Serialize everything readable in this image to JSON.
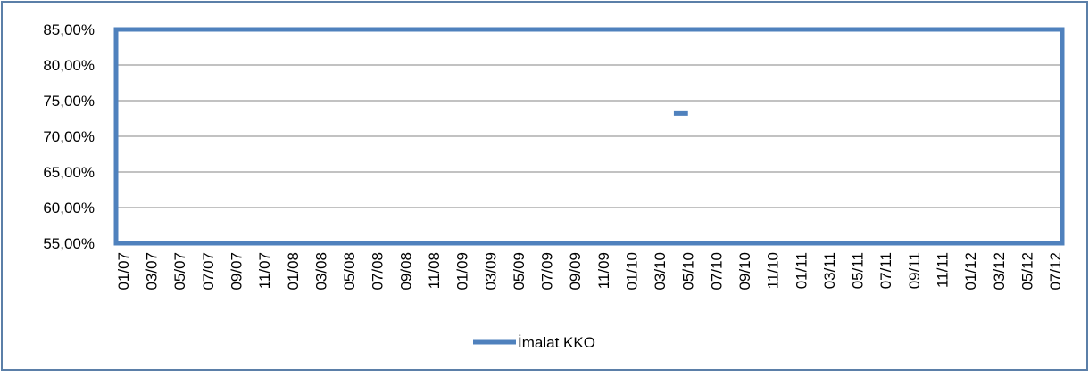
{
  "chart_data": {
    "type": "line",
    "categories": [
      "01/07",
      null,
      "03/07",
      null,
      "05/07",
      null,
      "07/07",
      null,
      "09/07",
      null,
      "11/07",
      null,
      "01/08",
      null,
      "03/08",
      null,
      "05/08",
      null,
      "07/08",
      null,
      "09/08",
      null,
      "11/08",
      null,
      "01/09",
      null,
      "03/09",
      null,
      "05/09",
      null,
      "07/09",
      null,
      "09/09",
      null,
      "11/09",
      null,
      "01/10",
      null,
      "03/10",
      null,
      "05/10",
      null,
      "07/10",
      null,
      "09/10",
      null,
      "11/10",
      null,
      "01/11",
      null,
      "03/11",
      null,
      "05/11",
      null,
      "07/11",
      null,
      "09/11",
      null,
      "11/11",
      null,
      "01/12",
      null,
      "03/12",
      null,
      "05/12",
      null,
      "07/12"
    ],
    "series": [
      {
        "name": "İmalat KKO",
        "color": "#4f81bd",
        "values": [
          null,
          null,
          null,
          null,
          null,
          null,
          null,
          null,
          null,
          null,
          null,
          null,
          null,
          null,
          null,
          null,
          null,
          null,
          null,
          null,
          null,
          null,
          null,
          null,
          null,
          null,
          null,
          null,
          null,
          null,
          null,
          null,
          null,
          null,
          null,
          null,
          null,
          null,
          null,
          73.2,
          73.2,
          null,
          null,
          null,
          null,
          null,
          null,
          null,
          null,
          null,
          null,
          null,
          null,
          null,
          null,
          null,
          null,
          null,
          null,
          null,
          null,
          null,
          null,
          null,
          null,
          null,
          null
        ]
      }
    ],
    "ylim": [
      55,
      85
    ],
    "yticks": [
      {
        "value": 55,
        "label": "55,00%"
      },
      {
        "value": 60,
        "label": "60,00%"
      },
      {
        "value": 65,
        "label": "65,00%"
      },
      {
        "value": 70,
        "label": "70,00%"
      },
      {
        "value": 75,
        "label": "75,00%"
      },
      {
        "value": 80,
        "label": "80,00%"
      },
      {
        "value": 85,
        "label": "85,00%"
      }
    ],
    "grid": true,
    "legend": "bottom"
  }
}
